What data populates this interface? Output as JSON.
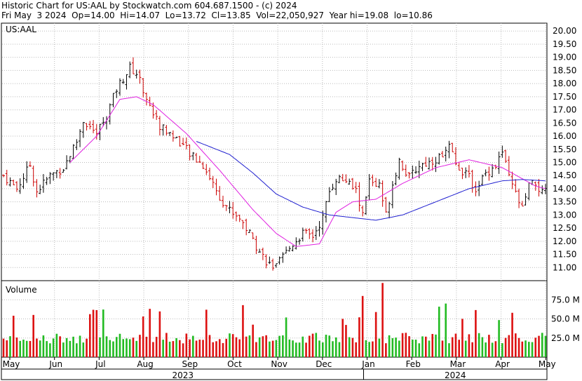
{
  "header": {
    "line1": "Historic Chart for US:AAL by Stockwatch.com 604.687.1500 - (c) 2024",
    "line2": "Fri May  3 2024  Op=14.00  Hi=14.07  Lo=13.72  Cl=13.85  Vol=22,050,927  Year hi=19.08  lo=10.86"
  },
  "colors": {
    "up_bar": "#000000",
    "down_bar": "#cc0000",
    "ma_short": "#e020e0",
    "ma_long": "#2020d0",
    "vol_up": "#22bb22",
    "vol_down": "#dd1111"
  },
  "chart_data": [
    {
      "type": "ohlc",
      "title": "US:AAL",
      "ylim": [
        10.5,
        20.3
      ],
      "y_ticks": [
        "20.00",
        "19.50",
        "19.00",
        "18.50",
        "18.00",
        "17.50",
        "17.00",
        "16.50",
        "16.00",
        "15.50",
        "15.00",
        "14.50",
        "14.00",
        "13.50",
        "13.00",
        "12.50",
        "12.00",
        "11.50",
        "11.00"
      ],
      "y_tick_values": [
        20.0,
        19.5,
        19.0,
        18.5,
        18.0,
        17.5,
        17.0,
        16.5,
        16.0,
        15.5,
        15.0,
        14.5,
        14.0,
        13.5,
        13.0,
        12.5,
        12.0,
        11.5,
        11.0
      ],
      "x_months": [
        "May",
        "Jun",
        "Jul",
        "Aug",
        "Sep",
        "Oct",
        "Nov",
        "Dec",
        "Jan",
        "Feb",
        "Mar",
        "Apr",
        "May"
      ],
      "x_years": [
        "2023",
        "2024"
      ],
      "close_path": [
        [
          0,
          14.5
        ],
        [
          4,
          14.0
        ],
        [
          8,
          14.9
        ],
        [
          10,
          13.9
        ],
        [
          14,
          14.5
        ],
        [
          18,
          14.8
        ],
        [
          22,
          15.8
        ],
        [
          24,
          16.6
        ],
        [
          28,
          16.1
        ],
        [
          31,
          16.8
        ],
        [
          34,
          17.8
        ],
        [
          38,
          18.6
        ],
        [
          40,
          18.4
        ],
        [
          42,
          17.8
        ],
        [
          44,
          17.1
        ],
        [
          47,
          16.4
        ],
        [
          50,
          16.1
        ],
        [
          53,
          15.8
        ],
        [
          56,
          15.3
        ],
        [
          60,
          14.9
        ],
        [
          63,
          14.2
        ],
        [
          65,
          13.7
        ],
        [
          68,
          13.2
        ],
        [
          71,
          12.9
        ],
        [
          74,
          12.3
        ],
        [
          77,
          11.6
        ],
        [
          80,
          11.1
        ],
        [
          82,
          11.0
        ],
        [
          84,
          11.4
        ],
        [
          87,
          11.9
        ],
        [
          90,
          12.3
        ],
        [
          93,
          12.2
        ],
        [
          96,
          12.9
        ],
        [
          98,
          13.9
        ],
        [
          100,
          14.4
        ],
        [
          103,
          14.3
        ],
        [
          106,
          13.9
        ],
        [
          108,
          13.0
        ],
        [
          110,
          14.3
        ],
        [
          113,
          14.1
        ],
        [
          115,
          13.0
        ],
        [
          117,
          14.2
        ],
        [
          119,
          15.1
        ],
        [
          122,
          14.4
        ],
        [
          125,
          14.9
        ],
        [
          128,
          15.0
        ],
        [
          131,
          15.2
        ],
        [
          134,
          15.6
        ],
        [
          136,
          14.9
        ],
        [
          139,
          14.6
        ],
        [
          142,
          14.0
        ],
        [
          145,
          14.6
        ],
        [
          148,
          14.9
        ],
        [
          150,
          15.4
        ],
        [
          152,
          14.4
        ],
        [
          154,
          13.8
        ],
        [
          156,
          13.2
        ],
        [
          158,
          14.1
        ],
        [
          160,
          14.2
        ],
        [
          162,
          13.8
        ],
        [
          163,
          13.85
        ]
      ],
      "ma_short": [
        [
          20,
          15.0
        ],
        [
          28,
          16.0
        ],
        [
          35,
          17.4
        ],
        [
          40,
          17.5
        ],
        [
          45,
          17.2
        ],
        [
          55,
          16.1
        ],
        [
          65,
          14.7
        ],
        [
          75,
          13.2
        ],
        [
          82,
          12.3
        ],
        [
          88,
          11.8
        ],
        [
          95,
          11.9
        ],
        [
          100,
          13.1
        ],
        [
          105,
          13.5
        ],
        [
          112,
          13.6
        ],
        [
          120,
          14.2
        ],
        [
          130,
          14.8
        ],
        [
          140,
          15.1
        ],
        [
          150,
          14.8
        ],
        [
          160,
          14.1
        ],
        [
          163,
          14.0
        ]
      ],
      "ma_long": [
        [
          58,
          15.8
        ],
        [
          68,
          15.3
        ],
        [
          75,
          14.6
        ],
        [
          82,
          13.8
        ],
        [
          90,
          13.3
        ],
        [
          98,
          13.0
        ],
        [
          105,
          12.9
        ],
        [
          112,
          12.8
        ],
        [
          120,
          13.0
        ],
        [
          130,
          13.5
        ],
        [
          140,
          14.0
        ],
        [
          150,
          14.3
        ],
        [
          156,
          14.35
        ],
        [
          163,
          14.3
        ]
      ]
    },
    {
      "type": "bar",
      "title": "Volume",
      "ylim": [
        0,
        100
      ],
      "y_ticks": [
        "75.0 M",
        "50.0 M",
        "25.0 M"
      ],
      "y_tick_values": [
        75,
        50,
        25
      ]
    }
  ]
}
